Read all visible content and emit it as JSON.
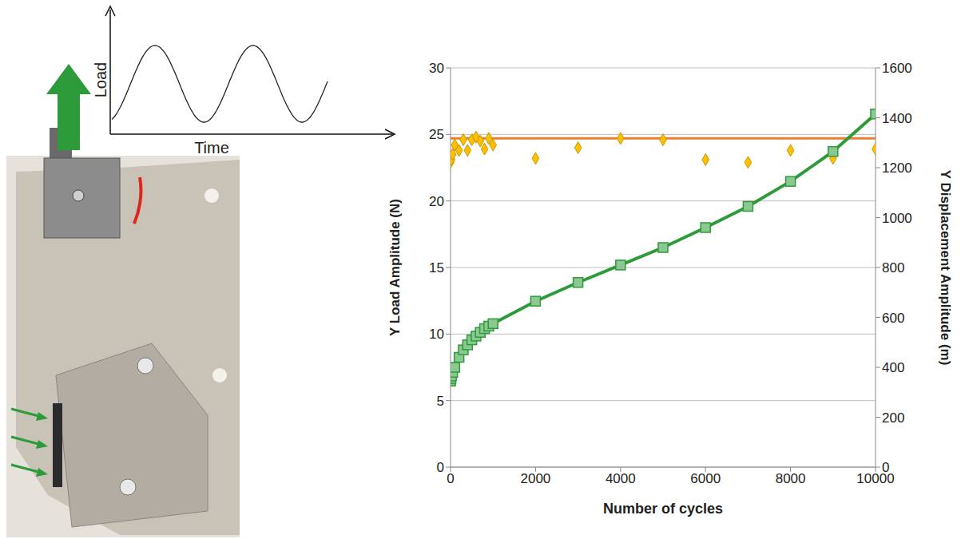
{
  "chart_data": {
    "type": "line",
    "x_label": "Number of cycles",
    "y_label": "Y Load Amplitude (N)",
    "y2_label": "Y Displacement Amplitude (m)",
    "xlim": [
      0,
      10000
    ],
    "xticks": [
      0,
      2000,
      4000,
      6000,
      8000,
      10000
    ],
    "ylim": [
      0,
      30
    ],
    "yticks": [
      0,
      5,
      10,
      15,
      20,
      25,
      30
    ],
    "y2lim": [
      0,
      1600
    ],
    "y2ticks": [
      0,
      200,
      400,
      600,
      800,
      1000,
      1200,
      1400,
      1600
    ],
    "grid": true,
    "series": [
      {
        "type": "scatter",
        "color": "#FFC000",
        "marker": "diamond",
        "x": [
          0,
          20,
          50,
          100,
          200,
          300,
          400,
          500,
          600,
          700,
          800,
          900,
          1000,
          2000,
          3000,
          4000,
          5000,
          6000,
          7000,
          8000,
          9000,
          10000
        ],
        "values": [
          22.9,
          23.1,
          23.5,
          24.2,
          23.8,
          24.6,
          23.8,
          24.6,
          24.8,
          24.5,
          23.9,
          24.7,
          24.2,
          23.2,
          24.0,
          24.7,
          24.6,
          23.1,
          22.9,
          23.8,
          23.2,
          23.9
        ]
      },
      {
        "type": "line",
        "color": "#ED7D31",
        "marker": "none",
        "line_style": "solid",
        "x": [
          0,
          10000
        ],
        "values": [
          24.7,
          24.7
        ]
      },
      {
        "type": "line",
        "color": "#2E9B3A",
        "marker": "square",
        "line_style": "solid",
        "axis": "y2",
        "x": [
          0,
          10,
          20,
          50,
          100,
          200,
          300,
          400,
          500,
          600,
          700,
          800,
          900,
          1000,
          2000,
          3000,
          4000,
          5000,
          6000,
          7000,
          8000,
          9000,
          10000
        ],
        "values": [
          345,
          355,
          365,
          380,
          400,
          440,
          470,
          490,
          510,
          525,
          540,
          555,
          565,
          575,
          665,
          740,
          810,
          880,
          960,
          1045,
          1145,
          1265,
          1415
        ]
      }
    ]
  },
  "sketch": {
    "y_label": "Load",
    "x_label": "Time"
  }
}
